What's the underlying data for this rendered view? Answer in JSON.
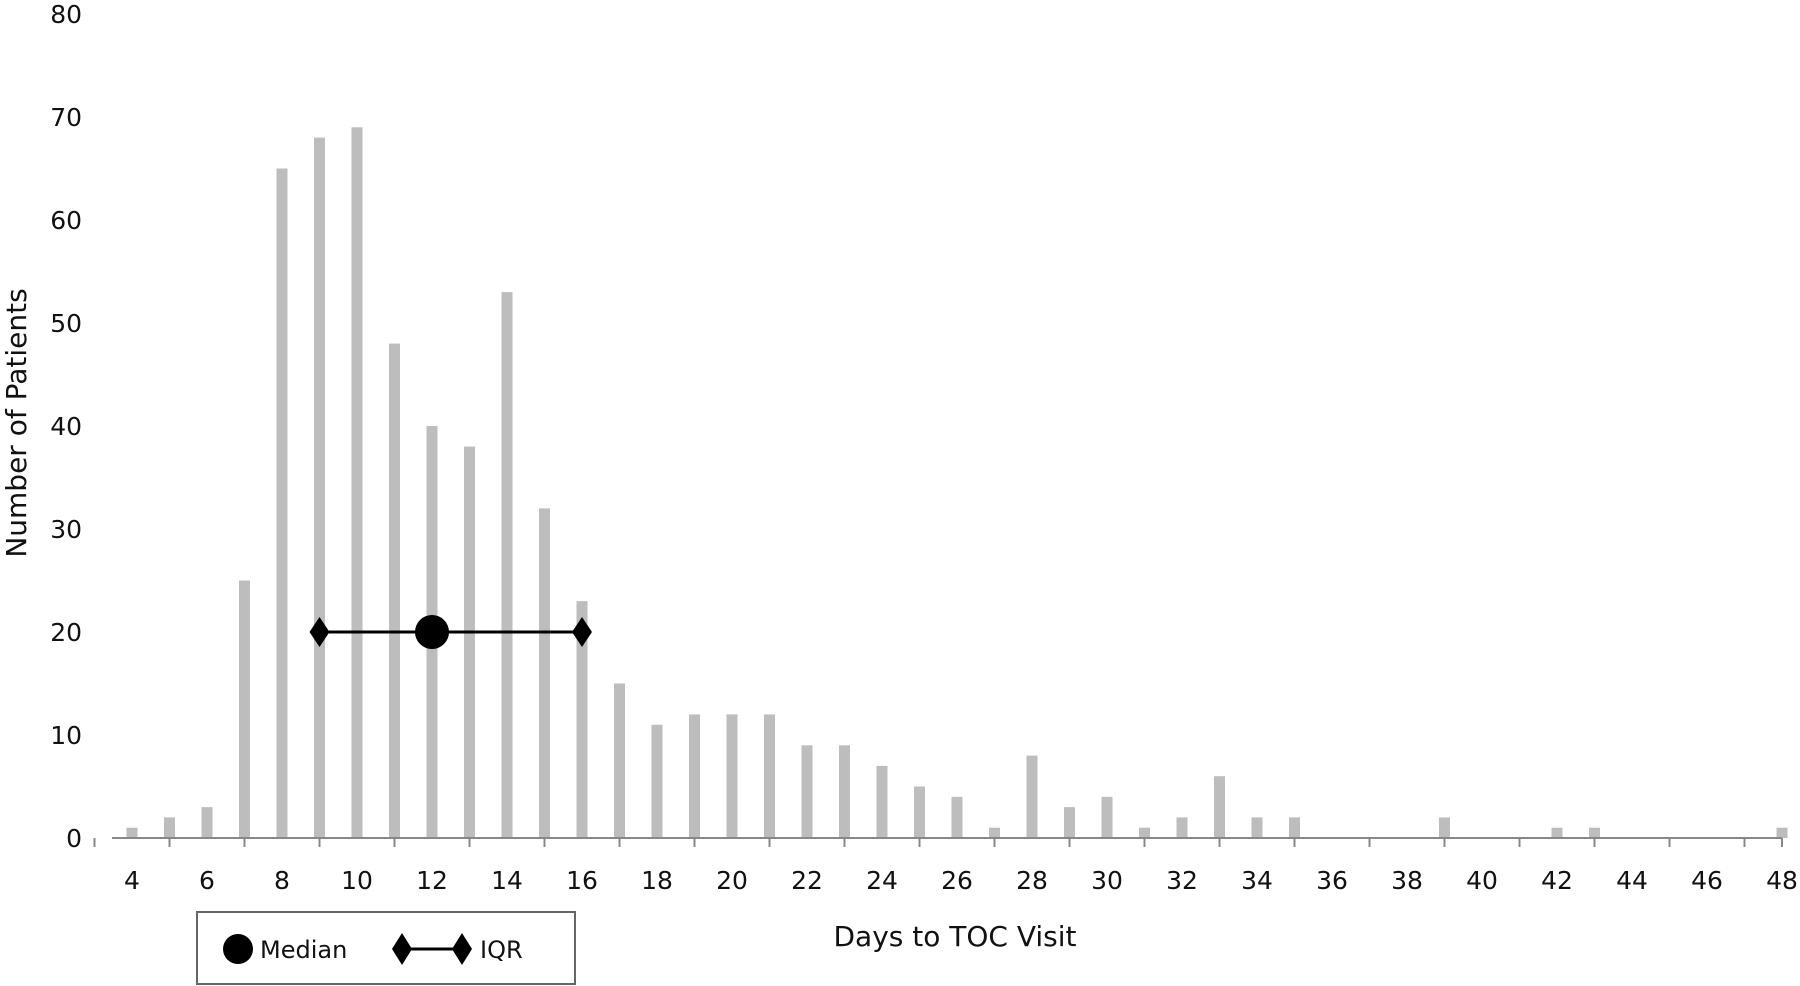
{
  "chart_data": {
    "type": "bar",
    "title": "",
    "xlabel": "Days to TOC Visit",
    "ylabel": "Number  of Patients",
    "xlim": [
      4,
      48
    ],
    "ylim": [
      0,
      80
    ],
    "yticks": [
      "0",
      "10",
      "20",
      "30",
      "40",
      "50",
      "60",
      "70",
      "80"
    ],
    "xticks": [
      "4",
      "6",
      "8",
      "10",
      "12",
      "14",
      "16",
      "18",
      "20",
      "22",
      "24",
      "26",
      "28",
      "30",
      "32",
      "34",
      "36",
      "38",
      "40",
      "42",
      "44",
      "46",
      "48"
    ],
    "grid": false,
    "bar_color": "#bdbdbd",
    "x": [
      4,
      5,
      6,
      7,
      8,
      9,
      10,
      11,
      12,
      13,
      14,
      15,
      16,
      17,
      18,
      19,
      20,
      21,
      22,
      23,
      24,
      25,
      26,
      27,
      28,
      29,
      30,
      31,
      32,
      33,
      34,
      35,
      36,
      37,
      38,
      39,
      40,
      41,
      42,
      43,
      44,
      45,
      46,
      47,
      48
    ],
    "values": [
      1,
      2,
      3,
      25,
      65,
      68,
      69,
      48,
      40,
      38,
      53,
      32,
      23,
      15,
      11,
      12,
      12,
      12,
      9,
      9,
      7,
      5,
      4,
      1,
      8,
      3,
      4,
      1,
      2,
      6,
      2,
      2,
      0,
      0,
      0,
      2,
      0,
      0,
      1,
      1,
      0,
      0,
      0,
      0,
      1
    ],
    "median": {
      "x": 12,
      "y": 20
    },
    "iqr": {
      "low": 9,
      "high": 16,
      "y": 20
    },
    "legend": {
      "position": "bottom-left",
      "median_label": "Median",
      "iqr_label": "IQR"
    }
  }
}
